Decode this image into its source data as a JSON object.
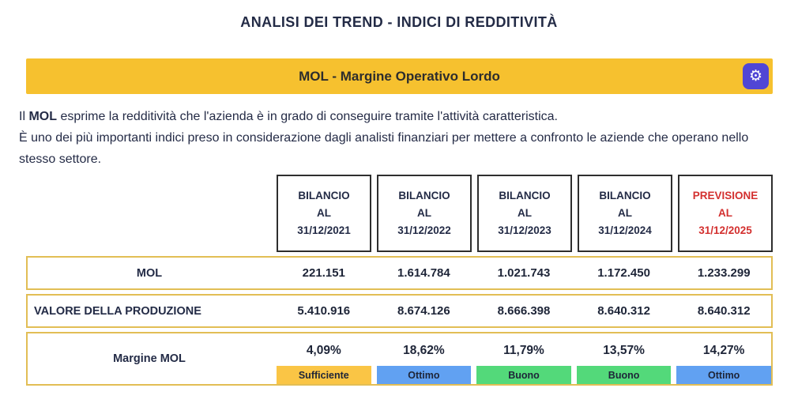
{
  "title": "ANALISI DEI TREND - INDICI DI REDDITIVITÀ",
  "panel": {
    "header": "MOL - Margine Operativo Lordo",
    "settings_icon": "gear-icon"
  },
  "description": {
    "p1_prefix": "Il ",
    "p1_bold": "MOL",
    "p1_rest": " esprime la redditività che l'azienda è in grado di conseguire tramite l'attività caratteristica.",
    "p2": "È uno dei più importanti indici preso in considerazione dagli analisti finanziari per mettere a confronto le aziende che operano nello stesso settore."
  },
  "table": {
    "columns": [
      {
        "line1": "BILANCIO",
        "line2": "AL",
        "line3": "31/12/2021"
      },
      {
        "line1": "BILANCIO",
        "line2": "AL",
        "line3": "31/12/2022"
      },
      {
        "line1": "BILANCIO",
        "line2": "AL",
        "line3": "31/12/2023"
      },
      {
        "line1": "BILANCIO",
        "line2": "AL",
        "line3": "31/12/2024"
      },
      {
        "line1": "PREVISIONE",
        "line2": "AL",
        "line3": "31/12/2025"
      }
    ],
    "rows": [
      {
        "label": "MOL",
        "values": [
          "221.151",
          "1.614.784",
          "1.021.743",
          "1.172.450",
          "1.233.299"
        ]
      },
      {
        "label": "VALORE DELLA PRODUZIONE",
        "values": [
          "5.410.916",
          "8.674.126",
          "8.666.398",
          "8.640.312",
          "8.640.312"
        ]
      },
      {
        "label": "Margine MOL",
        "values": [
          "4,09%",
          "18,62%",
          "11,79%",
          "13,57%",
          "14,27%"
        ],
        "badges": [
          {
            "label": "Sufficiente",
            "color": "#FAC545"
          },
          {
            "label": "Ottimo",
            "color": "#61A1F2"
          },
          {
            "label": "Buono",
            "color": "#53D97A"
          },
          {
            "label": "Buono",
            "color": "#53D97A"
          },
          {
            "label": "Ottimo",
            "color": "#61A1F2"
          }
        ]
      }
    ]
  },
  "colors": {
    "header_bar": "#F6C12F",
    "row_border": "#E2BE55",
    "gear_button": "#5046D5",
    "forecast_text": "#D3302F",
    "text_dark": "#232B46",
    "badge_sufficiente": "#FAC545",
    "badge_ottimo": "#61A1F2",
    "badge_buono": "#53D97A"
  }
}
